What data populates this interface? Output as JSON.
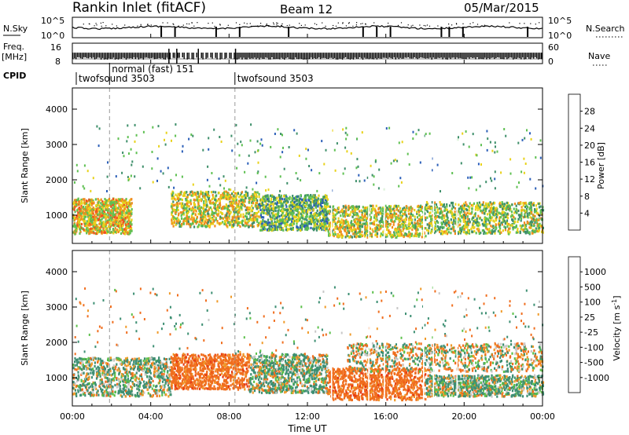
{
  "header": {
    "station": "Rankin Inlet (fitACF)",
    "beam": "Beam 12",
    "date": "05/Mar/2015"
  },
  "strips": {
    "nsky_label": "N.Sky",
    "nsky_ticks": [
      "10^5",
      "10^0"
    ],
    "nsearch_label": "N.Search",
    "nsearch_ticks": [
      "10^5",
      "10^0"
    ],
    "freq_label": "Freq.",
    "freq_unit": "[MHz]",
    "freq_ticks": [
      "16",
      "8"
    ],
    "nave_label": "Nave",
    "nave_ticks": [
      "60",
      "0"
    ],
    "cpid_label": "CPID",
    "cpid_modes": [
      {
        "name": "twofsound 3503",
        "start_hour": 0.2
      },
      {
        "name": "normal (fast) 151",
        "start_hour": 1.9
      },
      {
        "name": "twofsound 3503",
        "start_hour": 8.3
      }
    ]
  },
  "chart_data": [
    {
      "type": "heatmap",
      "name": "power",
      "xlabel": "Time UT",
      "ylabel": "Slant Range [km]",
      "xlim": [
        0,
        24
      ],
      "ylim": [
        200,
        4600
      ],
      "x_ticks": [
        "00:00",
        "04:00",
        "08:00",
        "12:00",
        "16:00",
        "20:00",
        "00:00"
      ],
      "y_ticks": [
        1000,
        2000,
        3000,
        4000
      ],
      "colorbar": {
        "label": "Power [dB]",
        "ticks": [
          4,
          8,
          12,
          16,
          20,
          24,
          28
        ],
        "colors": [
          "#1e1ee6",
          "#2b5fb8",
          "#3e8f6a",
          "#5fc052",
          "#e8d21a",
          "#f08c1e",
          "#f0501e",
          "#e61414"
        ]
      },
      "echo_regions": [
        {
          "t0": 0.0,
          "t1": 3.0,
          "r0": 500,
          "r1": 1500,
          "level": 26
        },
        {
          "t0": 5.0,
          "t1": 9.5,
          "r0": 700,
          "r1": 1700,
          "level": 24
        },
        {
          "t0": 9.5,
          "t1": 13.0,
          "r0": 600,
          "r1": 1600,
          "level": 20
        },
        {
          "t0": 13.0,
          "t1": 18.0,
          "r0": 400,
          "r1": 1300,
          "level": 24
        },
        {
          "t0": 18.0,
          "t1": 24.0,
          "r0": 500,
          "r1": 1400,
          "level": 22
        }
      ]
    },
    {
      "type": "heatmap",
      "name": "velocity",
      "xlabel": "Time UT",
      "ylabel": "Slant Range [km]",
      "xlim": [
        0,
        24
      ],
      "ylim": [
        200,
        4600
      ],
      "x_ticks": [
        "00:00",
        "04:00",
        "08:00",
        "12:00",
        "16:00",
        "20:00",
        "00:00"
      ],
      "y_ticks": [
        1000,
        2000,
        3000,
        4000
      ],
      "colorbar": {
        "label": "Velocity [m s-1]",
        "ticks": [
          1000,
          500,
          100,
          25,
          -25,
          -100,
          -500,
          -1000
        ],
        "colors": [
          "#1e2ec8",
          "#2e6aa8",
          "#3d8f73",
          "#5bc04a",
          "#c8c8c8",
          "#f09a28",
          "#f06e1e",
          "#e63a14",
          "#e61414"
        ]
      },
      "echo_regions": [
        {
          "t0": 0.0,
          "t1": 5.0,
          "r0": 500,
          "r1": 1600,
          "velocity": 100
        },
        {
          "t0": 5.0,
          "t1": 9.0,
          "r0": 700,
          "r1": 1700,
          "velocity": -300
        },
        {
          "t0": 9.0,
          "t1": 13.0,
          "r0": 600,
          "r1": 1700,
          "velocity": 100
        },
        {
          "t0": 13.0,
          "t1": 18.0,
          "r0": 400,
          "r1": 1300,
          "velocity": -300
        },
        {
          "t0": 14.0,
          "t1": 24.0,
          "r0": 1200,
          "r1": 2000,
          "velocity": 0
        },
        {
          "t0": 18.0,
          "t1": 24.0,
          "r0": 500,
          "r1": 1100,
          "velocity": 100
        }
      ]
    }
  ]
}
